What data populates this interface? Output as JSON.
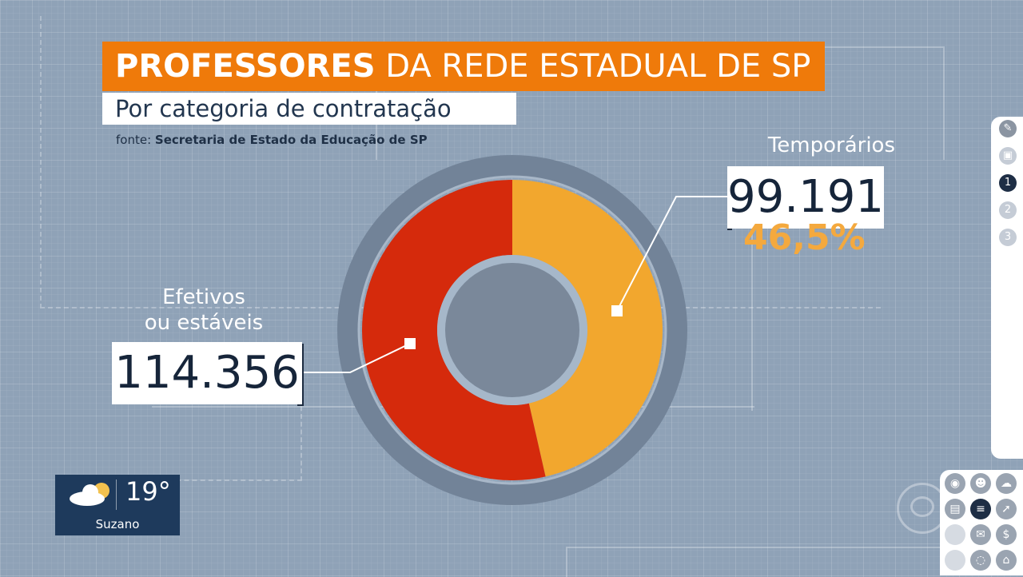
{
  "header": {
    "title_bold": "PROFESSORES",
    "title_rest": " DA REDE ESTADUAL DE SP",
    "subtitle": "Por categoria de contratação",
    "source_label": "fonte: ",
    "source_value": "Secretaria de Estado da Educação de SP"
  },
  "chart_data": {
    "type": "pie",
    "title": "PROFESSORES DA REDE ESTADUAL DE SP",
    "subtitle": "Por categoria de contratação",
    "series": [
      {
        "name": "Temporários",
        "value": 99191,
        "display_value": "99.191",
        "percent_label": "46,5%",
        "percent": 46.5,
        "color": "#f2a72e"
      },
      {
        "name": "Efetivos ou estáveis",
        "value": 114356,
        "display_value": "114.356",
        "percent": 53.5,
        "color": "#d52a0c"
      }
    ],
    "labels": {
      "efetivos_line1": "Efetivos",
      "efetivos_line2": "ou estáveis",
      "temporarios": "Temporários"
    }
  },
  "weather": {
    "temperature": "19°",
    "city": "Suzano",
    "icon": "partly-cloudy-icon"
  },
  "side_nav": {
    "items": [
      "pencil-icon",
      "screen-icon",
      "1",
      "2",
      "3"
    ],
    "active_index": 2
  },
  "colors": {
    "title_bg": "#ef7a0a",
    "background": "#8fa2b7",
    "accent_orange": "#f4a93e",
    "accent_red": "#d52a0c"
  }
}
